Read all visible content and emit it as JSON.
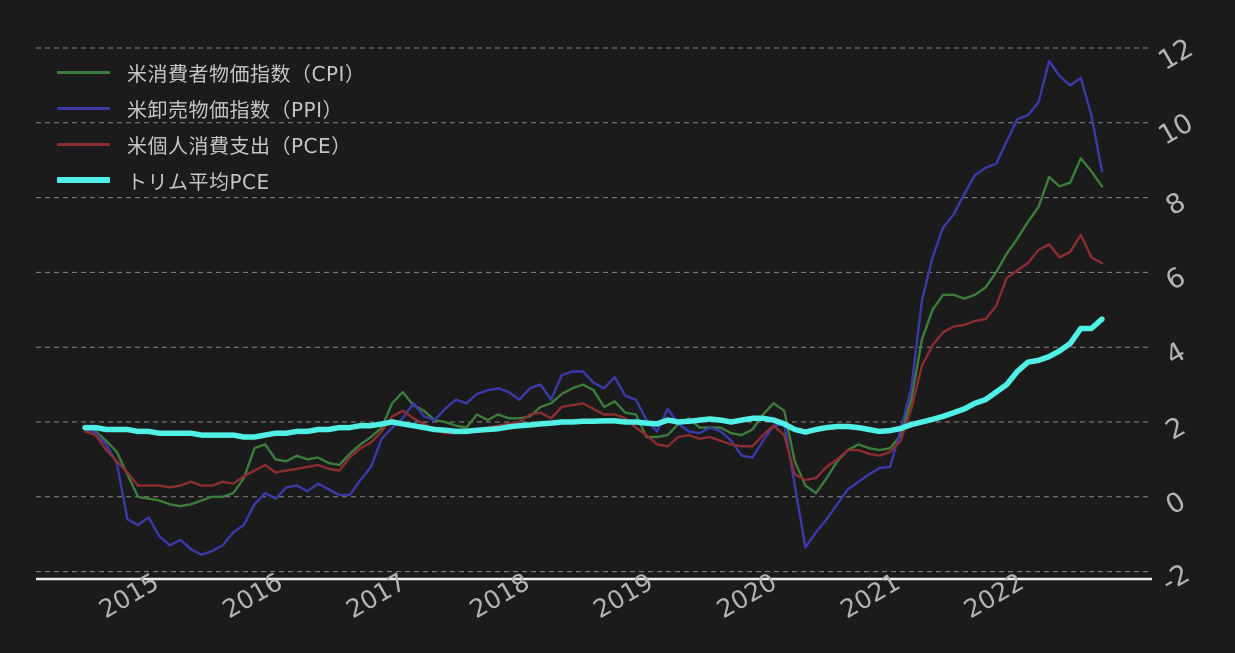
{
  "chart_data": {
    "type": "line",
    "title": "",
    "x_start_month": "2014-09",
    "x_end_month": "2022-09",
    "x_tick_labels": [
      "2015",
      "2016",
      "2017",
      "2018",
      "2019",
      "2020",
      "2021",
      "2022"
    ],
    "y_ticks": [
      -2,
      0,
      2,
      4,
      6,
      8,
      10,
      12
    ],
    "ylim": [
      -2.7,
      12.6
    ],
    "grid": "horizontal-dashed",
    "grid_color": "#9a9a9a",
    "axis_line_color": "#ededed",
    "tick_label_color": "#b3b3b3",
    "background_color": "#1b1b1b",
    "legend_position": "top-left",
    "series": [
      {
        "id": "cpi",
        "name": "米消費者物価指数（CPI）",
        "color": "#3c7d3c",
        "line_width": 2.4,
        "values": [
          1.8,
          1.75,
          1.5,
          1.2,
          0.6,
          0.0,
          -0.05,
          -0.1,
          -0.2,
          -0.25,
          -0.2,
          -0.1,
          0.0,
          0.0,
          0.1,
          0.5,
          1.3,
          1.4,
          1.0,
          0.95,
          1.1,
          1.0,
          1.05,
          0.9,
          0.85,
          1.15,
          1.4,
          1.6,
          1.85,
          2.5,
          2.8,
          2.45,
          2.3,
          2.05,
          2.0,
          1.9,
          1.85,
          2.2,
          2.05,
          2.2,
          2.1,
          2.1,
          2.15,
          2.4,
          2.5,
          2.75,
          2.9,
          3.0,
          2.85,
          2.4,
          2.55,
          2.25,
          2.2,
          1.6,
          1.6,
          1.65,
          1.95,
          2.1,
          1.85,
          1.85,
          1.85,
          1.7,
          1.65,
          1.8,
          2.2,
          2.5,
          2.3,
          0.95,
          0.3,
          0.1,
          0.5,
          0.95,
          1.25,
          1.4,
          1.3,
          1.25,
          1.3,
          1.65,
          2.6,
          4.2,
          5.0,
          5.4,
          5.4,
          5.3,
          5.4,
          5.6,
          6.0,
          6.5,
          6.9,
          7.35,
          7.75,
          8.55,
          8.3,
          8.4,
          9.05,
          8.7,
          8.3
        ]
      },
      {
        "id": "ppi",
        "name": "米卸売物価指数（PPI）",
        "color": "#3a3aaa",
        "line_width": 2.4,
        "values": [
          1.85,
          1.7,
          1.4,
          0.9,
          -0.6,
          -0.75,
          -0.55,
          -1.05,
          -1.3,
          -1.15,
          -1.4,
          -1.55,
          -1.45,
          -1.3,
          -0.95,
          -0.75,
          -0.2,
          0.1,
          -0.05,
          0.25,
          0.3,
          0.15,
          0.35,
          0.2,
          0.05,
          0.05,
          0.45,
          0.8,
          1.55,
          1.85,
          2.1,
          2.5,
          2.15,
          2.05,
          2.35,
          2.6,
          2.5,
          2.75,
          2.85,
          2.9,
          2.8,
          2.6,
          2.9,
          3.0,
          2.6,
          3.25,
          3.35,
          3.35,
          3.05,
          2.9,
          3.2,
          2.7,
          2.6,
          2.05,
          1.75,
          2.35,
          1.95,
          1.75,
          1.7,
          1.85,
          1.75,
          1.5,
          1.1,
          1.05,
          1.5,
          1.9,
          1.95,
          0.3,
          -1.35,
          -0.95,
          -0.6,
          -0.2,
          0.2,
          0.4,
          0.6,
          0.77,
          0.8,
          1.8,
          2.9,
          5.25,
          6.4,
          7.2,
          7.55,
          8.1,
          8.6,
          8.8,
          8.9,
          9.5,
          10.1,
          10.2,
          10.55,
          11.65,
          11.25,
          11.0,
          11.2,
          10.2,
          8.7
        ]
      },
      {
        "id": "pce",
        "name": "米個人消費支出（PCE）",
        "color": "#8c2d32",
        "line_width": 2.4,
        "values": [
          1.75,
          1.65,
          1.25,
          0.95,
          0.65,
          0.3,
          0.3,
          0.3,
          0.25,
          0.3,
          0.4,
          0.3,
          0.3,
          0.4,
          0.35,
          0.55,
          0.7,
          0.85,
          0.65,
          0.7,
          0.75,
          0.8,
          0.85,
          0.75,
          0.7,
          1.05,
          1.3,
          1.45,
          1.75,
          2.15,
          2.3,
          2.1,
          1.95,
          1.8,
          1.7,
          1.7,
          1.75,
          1.8,
          1.85,
          1.9,
          1.95,
          2.0,
          2.2,
          2.25,
          2.1,
          2.4,
          2.45,
          2.5,
          2.35,
          2.2,
          2.2,
          2.1,
          1.85,
          1.65,
          1.4,
          1.35,
          1.6,
          1.65,
          1.55,
          1.6,
          1.5,
          1.4,
          1.35,
          1.35,
          1.65,
          1.9,
          1.65,
          0.6,
          0.45,
          0.5,
          0.8,
          1.0,
          1.25,
          1.25,
          1.15,
          1.1,
          1.2,
          1.5,
          2.35,
          3.5,
          4.05,
          4.4,
          4.55,
          4.6,
          4.7,
          4.75,
          5.1,
          5.85,
          6.05,
          6.25,
          6.6,
          6.75,
          6.4,
          6.55,
          7.0,
          6.4,
          6.25
        ]
      },
      {
        "id": "trimmed_pce",
        "name": "トリム平均PCE",
        "color": "#50f0e6",
        "line_width": 5.5,
        "values": [
          1.85,
          1.85,
          1.8,
          1.8,
          1.8,
          1.75,
          1.75,
          1.7,
          1.7,
          1.7,
          1.7,
          1.65,
          1.65,
          1.65,
          1.65,
          1.6,
          1.6,
          1.65,
          1.7,
          1.7,
          1.75,
          1.75,
          1.8,
          1.8,
          1.85,
          1.85,
          1.9,
          1.9,
          1.95,
          2.0,
          1.95,
          1.9,
          1.85,
          1.8,
          1.78,
          1.75,
          1.75,
          1.78,
          1.8,
          1.82,
          1.87,
          1.9,
          1.92,
          1.95,
          1.97,
          2.0,
          2.0,
          2.02,
          2.02,
          2.03,
          2.03,
          2.0,
          2.0,
          1.97,
          1.95,
          2.05,
          2.0,
          2.02,
          2.05,
          2.08,
          2.05,
          2.0,
          2.05,
          2.1,
          2.1,
          2.05,
          1.95,
          1.8,
          1.73,
          1.8,
          1.85,
          1.88,
          1.88,
          1.85,
          1.8,
          1.75,
          1.77,
          1.83,
          1.93,
          2.0,
          2.07,
          2.15,
          2.25,
          2.35,
          2.5,
          2.6,
          2.8,
          3.0,
          3.35,
          3.6,
          3.65,
          3.75,
          3.9,
          4.1,
          4.5,
          4.5,
          4.75
        ]
      }
    ]
  }
}
